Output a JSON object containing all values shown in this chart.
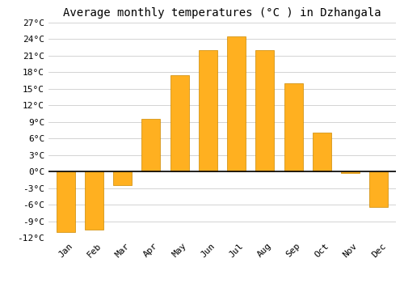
{
  "title": "Average monthly temperatures (°C ) in Dzhangala",
  "months": [
    "Jan",
    "Feb",
    "Mar",
    "Apr",
    "May",
    "Jun",
    "Jul",
    "Aug",
    "Sep",
    "Oct",
    "Nov",
    "Dec"
  ],
  "values": [
    -11,
    -10.5,
    -2.5,
    9.5,
    17.5,
    22,
    24.5,
    22,
    16,
    7,
    -0.3,
    -6.5
  ],
  "bar_color_gradient_top": "#FFD060",
  "bar_color_gradient_bot": "#FFA000",
  "bar_edge_color": "#CC8800",
  "ylim": [
    -12,
    27
  ],
  "yticks": [
    -12,
    -9,
    -6,
    -3,
    0,
    3,
    6,
    9,
    12,
    15,
    18,
    21,
    24,
    27
  ],
  "ytick_labels": [
    "-12°C",
    "-9°C",
    "-6°C",
    "-3°C",
    "0°C",
    "3°C",
    "6°C",
    "9°C",
    "12°C",
    "15°C",
    "18°C",
    "21°C",
    "24°C",
    "27°C"
  ],
  "grid_color": "#cccccc",
  "background_color": "#ffffff",
  "zero_line_color": "#000000",
  "title_fontsize": 10,
  "tick_fontsize": 8,
  "font_family": "monospace"
}
